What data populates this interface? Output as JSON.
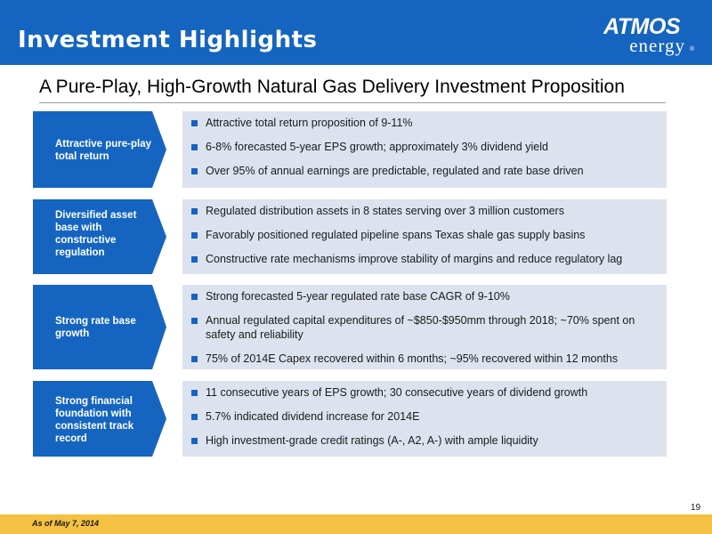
{
  "header": {
    "title": "Investment Highlights",
    "logo_brand": "ATMOS",
    "logo_sub": "energy",
    "logo_reg": "®"
  },
  "subtitle": "A Pure-Play, High-Growth Natural Gas Delivery Investment Proposition",
  "colors": {
    "primary": "#1565c0",
    "panel": "#dce3ef",
    "footer": "#f4c142"
  },
  "rows": [
    {
      "label": "Attractive pure-play total return",
      "bullets": [
        "Attractive total return proposition of 9-11%",
        "6-8% forecasted 5-year EPS growth; approximately 3% dividend yield",
        "Over 95% of annual earnings are predictable, regulated and rate base driven"
      ]
    },
    {
      "label": "Diversified asset base with constructive regulation",
      "bullets": [
        "Regulated distribution assets in 8 states serving over 3 million customers",
        "Favorably positioned regulated pipeline spans Texas shale gas supply basins",
        "Constructive rate mechanisms improve stability of margins and reduce regulatory lag"
      ]
    },
    {
      "label": "Strong rate base growth",
      "bullets": [
        "Strong forecasted 5-year regulated rate base CAGR of 9-10%",
        "Annual regulated capital expenditures of ~$850-$950mm through 2018; ~70% spent on safety and reliability",
        "75% of 2014E Capex recovered within 6 months; ~95% recovered within 12 months"
      ]
    },
    {
      "label": "Strong financial foundation with consistent track record",
      "bullets": [
        "11 consecutive years of EPS growth; 30 consecutive years of dividend growth",
        "5.7% indicated dividend increase for 2014E",
        "High investment-grade credit ratings (A-, A2, A-) with ample liquidity"
      ]
    }
  ],
  "footer": {
    "note": "As of May 7, 2014",
    "page": "19"
  }
}
